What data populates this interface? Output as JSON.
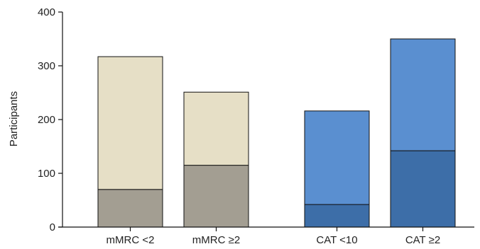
{
  "chart_data": {
    "type": "bar",
    "stacked": true,
    "title": "",
    "xlabel": "",
    "ylabel": "Participants",
    "ylim": [
      0,
      400
    ],
    "yticks": [
      0,
      100,
      200,
      300,
      400
    ],
    "grid": false,
    "categories": [
      "mMRC <2",
      "mMRC ≥2",
      "CAT <10",
      "CAT ≥2"
    ],
    "series": [
      {
        "values": [
          70,
          115,
          42,
          142
        ]
      },
      {
        "values": [
          247,
          136,
          174,
          208
        ]
      }
    ],
    "totals": [
      317,
      251,
      216,
      350
    ],
    "colors": {
      "bottom": [
        "#a39e92",
        "#a39e92",
        "#3d6ea8",
        "#3d6ea8"
      ],
      "top": [
        "#e6dfc6",
        "#e6dfc6",
        "#5a8fd0",
        "#5a8fd0"
      ],
      "stroke": "#111111"
    }
  }
}
